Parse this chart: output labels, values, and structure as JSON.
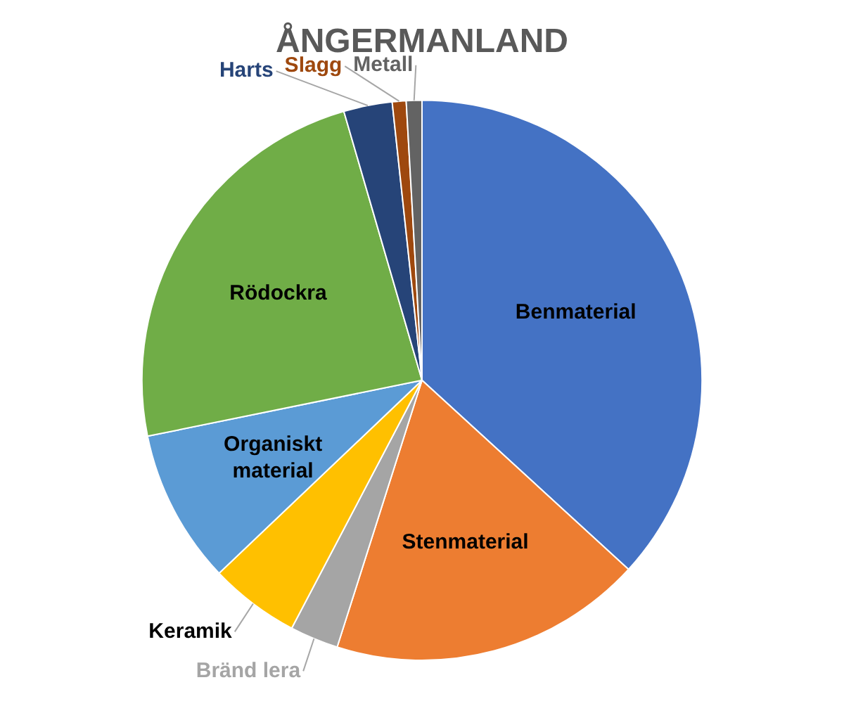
{
  "chart_data": {
    "type": "pie",
    "title": "ÅNGERMANLAND",
    "categories": [
      "Benmaterial",
      "Stenmaterial",
      "Bränd lera",
      "Keramik",
      "Organiskt material",
      "Rödockra",
      "Harts",
      "Slagg",
      "Metall"
    ],
    "values": [
      36.8,
      18.1,
      2.8,
      5.2,
      8.9,
      23.7,
      2.8,
      0.8,
      0.9
    ],
    "colors": [
      "#4472c4",
      "#ed7d31",
      "#a5a5a5",
      "#ffc000",
      "#5b9bd5",
      "#70ad47",
      "#264478",
      "#9e480e",
      "#636363"
    ]
  }
}
